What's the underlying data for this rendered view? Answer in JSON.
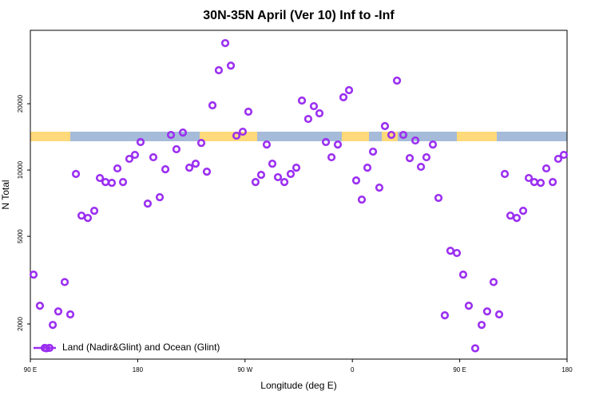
{
  "chart_data": {
    "type": "scatter",
    "title": "30N-35N April (Ver 10)   Inf to -Inf",
    "x_label": "Longitude (deg E)",
    "y_label": "N Total",
    "log_y": true,
    "legend": "bottom-left",
    "xlim": [
      90,
      540
    ],
    "ylim": [
      1385,
      43100
    ],
    "xticks": [
      {
        "value": 90,
        "label": "90 E"
      },
      {
        "value": 180,
        "label": "180"
      },
      {
        "value": 270,
        "label": "90 W"
      },
      {
        "value": 360,
        "label": "0"
      },
      {
        "value": 450,
        "label": "90 E"
      },
      {
        "value": 540,
        "label": "180"
      }
    ],
    "yticks": [
      2000,
      5000,
      10000,
      20000
    ],
    "series": [
      {
        "name": "Land (Nadir&Glint) and Ocean (Glint)",
        "color": "#9b2ff0",
        "x": [
          92.7,
          98,
          103.4,
          108.8,
          113.4,
          118.8,
          123.5,
          128.2,
          132.9,
          138.2,
          143.6,
          148.3,
          153,
          158.3,
          163,
          167.7,
          173,
          177.7,
          182.4,
          188.4,
          193.1,
          198.5,
          203.2,
          207.9,
          212.5,
          217.9,
          223.3,
          228.6,
          233.3,
          238,
          242.7,
          248,
          253.4,
          258.1,
          262.8,
          268.1,
          272.8,
          278.8,
          283.5,
          288.2,
          292.9,
          297.6,
          303,
          308.3,
          313,
          317.7,
          323,
          327.7,
          332.4,
          337.8,
          342.5,
          347.8,
          352.5,
          357.2,
          363.2,
          367.9,
          372.6,
          377.3,
          382.6,
          387.3,
          392.7,
          397.4,
          402.7,
          408.1,
          412.8,
          417.5,
          422.1,
          427.5,
          432.2,
          437.5,
          442.2,
          447.6,
          452.9,
          457.6,
          463,
          468.4,
          473,
          478.4,
          483.1,
          487.8,
          492.5,
          497.8,
          503.2,
          507.9,
          512.5,
          517.9,
          522.6,
          528,
          532.6,
          537.3
        ],
        "values": [
          3350,
          2420,
          1550,
          1980,
          2280,
          3100,
          2210,
          9600,
          6210,
          6060,
          6530,
          9200,
          8820,
          8750,
          10170,
          8820,
          11240,
          11720,
          13400,
          7040,
          11430,
          7530,
          10080,
          14440,
          12430,
          14800,
          10250,
          10690,
          13280,
          9830,
          19670,
          28400,
          37700,
          29800,
          14320,
          14930,
          18400,
          8820,
          9510,
          13060,
          10690,
          9280,
          8820,
          9600,
          10250,
          20680,
          17060,
          19500,
          18100,
          13400,
          11430,
          13060,
          21400,
          23050,
          8970,
          7340,
          10250,
          12120,
          8320,
          15830,
          14440,
          25480,
          14440,
          11330,
          13620,
          10340,
          11430,
          13060,
          7470,
          2190,
          4300,
          4200,
          3350,
          2420,
          1550,
          1980,
          2280,
          3100,
          2210,
          9600,
          6210,
          6060,
          6530,
          9200,
          8820,
          8750,
          10170,
          8820,
          11240,
          11720
        ]
      }
    ]
  }
}
